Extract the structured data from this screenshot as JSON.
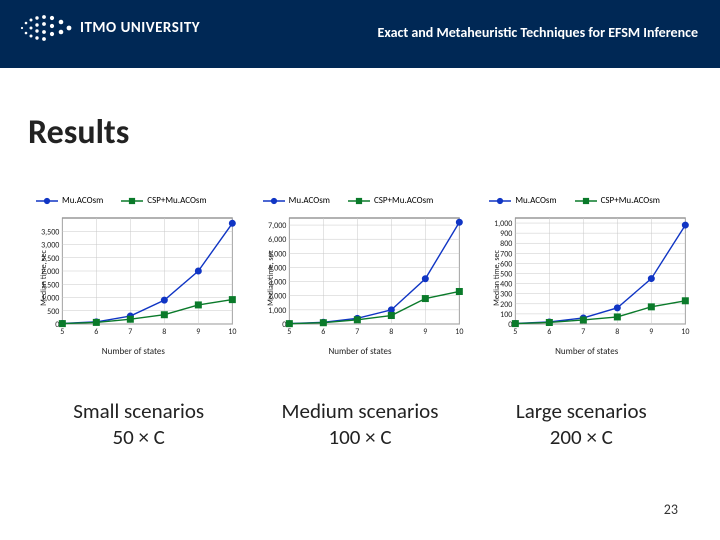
{
  "header": {
    "logo_text": "ITMO UNIVERSITY",
    "title": "Exact and Metaheuristic Techniques for EFSM Inference",
    "band_color": "#002855",
    "text_color": "#ffffff"
  },
  "section_title": "Results",
  "page_number": "23",
  "legend": {
    "items": [
      {
        "label": "Mu.ACOsm",
        "color": "#1035c4",
        "marker": "circle"
      },
      {
        "label": "CSP+Mu.ACOsm",
        "color": "#0a7a2a",
        "marker": "square"
      }
    ]
  },
  "axes": {
    "xlabel": "Number of states",
    "ylabel": "Median time, sec",
    "x_ticks": [
      5,
      6,
      7,
      8,
      9,
      10
    ],
    "xlim": [
      5,
      10
    ],
    "grid_color": "#c9c9c9",
    "axis_color": "#404040",
    "background_color": "#ffffff",
    "tick_fontsize": 8,
    "label_fontsize": 9,
    "line_width": 1.4,
    "marker_size": 3
  },
  "charts": [
    {
      "caption_line1": "Small scenarios",
      "caption_line2": "50 × C",
      "ylim": [
        0,
        4000
      ],
      "y_ticks": [
        0,
        500,
        1000,
        1500,
        2000,
        2500,
        3000,
        3500
      ],
      "series": [
        {
          "key": 0,
          "y": [
            20,
            80,
            300,
            900,
            2000,
            3800
          ]
        },
        {
          "key": 1,
          "y": [
            15,
            60,
            180,
            350,
            720,
            920
          ]
        }
      ]
    },
    {
      "caption_line1": "Medium scenarios",
      "caption_line2": "100 × C",
      "ylim": [
        0,
        7500
      ],
      "y_ticks": [
        0,
        1000,
        2000,
        3000,
        4000,
        5000,
        6000,
        7000
      ],
      "series": [
        {
          "key": 0,
          "y": [
            30,
            120,
            400,
            1000,
            3200,
            7200
          ]
        },
        {
          "key": 1,
          "y": [
            25,
            90,
            300,
            600,
            1800,
            2300
          ]
        }
      ]
    },
    {
      "caption_line1": "Large scenarios",
      "caption_line2": "200 × C",
      "ylim": [
        0,
        1050
      ],
      "y_ticks": [
        0,
        100,
        200,
        300,
        400,
        500,
        600,
        700,
        800,
        900,
        1000
      ],
      "series": [
        {
          "key": 0,
          "y": [
            5,
            20,
            60,
            160,
            450,
            980
          ]
        },
        {
          "key": 1,
          "y": [
            4,
            15,
            40,
            70,
            170,
            230
          ]
        }
      ]
    }
  ]
}
